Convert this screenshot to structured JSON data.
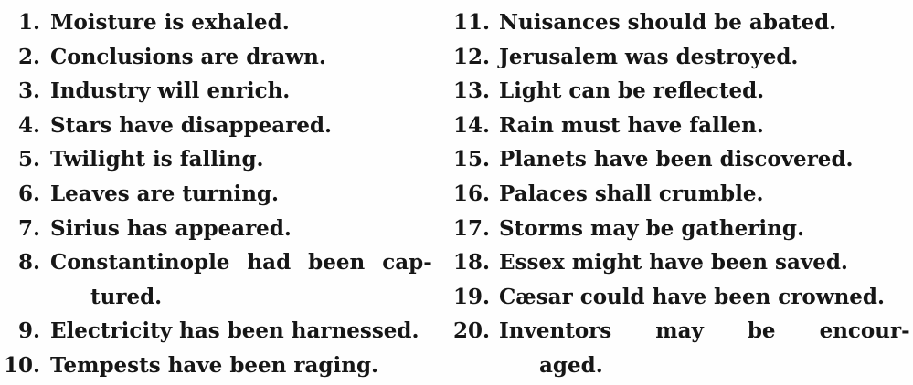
{
  "page": {
    "background": "#fefefe",
    "ink_color": "#161616",
    "description": "Scanned book page: two-column numbered list of twenty example sentences"
  },
  "list": {
    "left": [
      {
        "num": "1.",
        "text": "Moisture is exhaled."
      },
      {
        "num": "2.",
        "text": "Conclusions are drawn."
      },
      {
        "num": "3.",
        "text": "Industry will enrich."
      },
      {
        "num": "4.",
        "text": "Stars have disappeared."
      },
      {
        "num": "5.",
        "text": "Twilight is falling."
      },
      {
        "num": "6.",
        "text": "Leaves are turning."
      },
      {
        "num": "7.",
        "text": "Sirius has appeared."
      },
      {
        "num": "8.",
        "text": "Constantinople had been cap-",
        "text2": "tured."
      },
      {
        "num": "9.",
        "text": "Electricity has been harnessed."
      },
      {
        "num": "10.",
        "text": "Tempests have been raging."
      }
    ],
    "right": [
      {
        "num": "11.",
        "text": "Nuisances should be abated."
      },
      {
        "num": "12.",
        "text": "Jerusalem was destroyed."
      },
      {
        "num": "13.",
        "text": "Light can be reflected."
      },
      {
        "num": "14.",
        "text": "Rain must have fallen."
      },
      {
        "num": "15.",
        "text": "Planets have been discovered."
      },
      {
        "num": "16.",
        "text": "Palaces shall crumble."
      },
      {
        "num": "17.",
        "text": "Storms may be gathering."
      },
      {
        "num": "18.",
        "text": "Essex might have been saved."
      },
      {
        "num": "19.",
        "text": "Cæsar could have been crowned."
      },
      {
        "num": "20.",
        "text": "Inventors may be encour-",
        "text2": "aged."
      }
    ]
  }
}
